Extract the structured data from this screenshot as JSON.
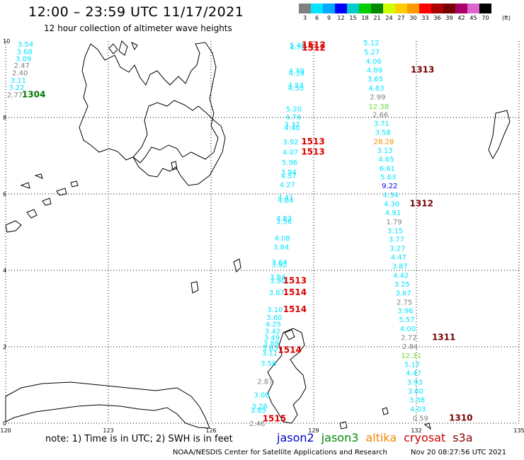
{
  "header": {
    "title": "12:00 – 23:59 UTC 11/17/2021",
    "subtitle": "12 hour collection of altimeter wave heights"
  },
  "colorbar": {
    "unit": "(ft)",
    "colors": [
      "#808080",
      "#00e5ff",
      "#00aaff",
      "#0000ff",
      "#00cccc",
      "#00cc00",
      "#008800",
      "#ccff00",
      "#ffcc00",
      "#ff9900",
      "#ff0000",
      "#aa0000",
      "#770000",
      "#aa0066",
      "#dd66cc",
      "#000000"
    ],
    "labels": [
      "3",
      "6",
      "9",
      "12",
      "15",
      "18",
      "21",
      "24",
      "27",
      "30",
      "33",
      "36",
      "39",
      "42",
      "45",
      "70"
    ]
  },
  "axes": {
    "x_ticks": [
      "120",
      "123",
      "126",
      "129",
      "132",
      "135"
    ],
    "y_ticks": [
      "10",
      "8",
      "6",
      "4",
      "2",
      "0"
    ]
  },
  "observations": [
    {
      "v": "3.54",
      "c": "#00e5ff",
      "lon": 120.58,
      "lat": 9.93
    },
    {
      "v": "3.68",
      "c": "#00e5ff",
      "lon": 120.55,
      "lat": 9.73
    },
    {
      "v": "3.09",
      "c": "#00e5ff",
      "lon": 120.52,
      "lat": 9.55
    },
    {
      "v": "2.47",
      "c": "#808080",
      "lon": 120.47,
      "lat": 9.37
    },
    {
      "v": "2.40",
      "c": "#808080",
      "lon": 120.42,
      "lat": 9.18
    },
    {
      "v": "3.11",
      "c": "#00e5ff",
      "lon": 120.37,
      "lat": 8.98
    },
    {
      "v": "3.22",
      "c": "#00e5ff",
      "lon": 120.32,
      "lat": 8.8
    },
    {
      "v": "2.77",
      "c": "#808080",
      "lon": 120.27,
      "lat": 8.6
    },
    {
      "v": "5.48",
      "c": "#00e5ff",
      "lon": 128.53,
      "lat": 9.9
    },
    {
      "v": "4.78",
      "c": "#00e5ff",
      "lon": 128.53,
      "lat": 9.84
    },
    {
      "v": "4.39",
      "c": "#00e5ff",
      "lon": 128.5,
      "lat": 9.23
    },
    {
      "v": "4.39",
      "c": "#00e5ff",
      "lon": 128.5,
      "lat": 9.17
    },
    {
      "v": "4.53",
      "c": "#00e5ff",
      "lon": 128.48,
      "lat": 8.85
    },
    {
      "v": "4.50",
      "c": "#00e5ff",
      "lon": 128.48,
      "lat": 8.78
    },
    {
      "v": "5.20",
      "c": "#00e5ff",
      "lon": 128.42,
      "lat": 8.23
    },
    {
      "v": "4.74",
      "c": "#00e5ff",
      "lon": 128.4,
      "lat": 8.02
    },
    {
      "v": "3.37",
      "c": "#00e5ff",
      "lon": 128.37,
      "lat": 7.82
    },
    {
      "v": "4.40",
      "c": "#00e5ff",
      "lon": 128.37,
      "lat": 7.74
    },
    {
      "v": "3.92",
      "c": "#00e5ff",
      "lon": 128.33,
      "lat": 7.37
    },
    {
      "v": "4.07",
      "c": "#00e5ff",
      "lon": 128.32,
      "lat": 7.1
    },
    {
      "v": "5.96",
      "c": "#00e5ff",
      "lon": 128.3,
      "lat": 6.83
    },
    {
      "v": "3.94",
      "c": "#00e5ff",
      "lon": 128.27,
      "lat": 6.58
    },
    {
      "v": "4.57",
      "c": "#00e5ff",
      "lon": 128.27,
      "lat": 6.48
    },
    {
      "v": "4.27",
      "c": "#00e5ff",
      "lon": 128.23,
      "lat": 6.25
    },
    {
      "v": "4.41",
      "c": "#00e5ff",
      "lon": 128.18,
      "lat": 5.92
    },
    {
      "v": "4.64",
      "c": "#00e5ff",
      "lon": 128.18,
      "lat": 5.84
    },
    {
      "v": "4.83",
      "c": "#00e5ff",
      "lon": 128.13,
      "lat": 5.37
    },
    {
      "v": "3.56",
      "c": "#00e5ff",
      "lon": 128.13,
      "lat": 5.29
    },
    {
      "v": "4.08",
      "c": "#00e5ff",
      "lon": 128.08,
      "lat": 4.85
    },
    {
      "v": "3.84",
      "c": "#00e5ff",
      "lon": 128.05,
      "lat": 4.62
    },
    {
      "v": "3.64",
      "c": "#00e5ff",
      "lon": 128.0,
      "lat": 4.22
    },
    {
      "v": "3.92",
      "c": "#00e5ff",
      "lon": 128.0,
      "lat": 4.16
    },
    {
      "v": "3.84",
      "c": "#00e5ff",
      "lon": 127.95,
      "lat": 3.83
    },
    {
      "v": "3.90",
      "c": "#00e5ff",
      "lon": 127.95,
      "lat": 3.73
    },
    {
      "v": "3.87",
      "c": "#00e5ff",
      "lon": 127.92,
      "lat": 3.43
    },
    {
      "v": "3.10",
      "c": "#00e5ff",
      "lon": 127.87,
      "lat": 2.98
    },
    {
      "v": "3.60",
      "c": "#00e5ff",
      "lon": 127.85,
      "lat": 2.78
    },
    {
      "v": "4.25",
      "c": "#00e5ff",
      "lon": 127.82,
      "lat": 2.6
    },
    {
      "v": "3.42",
      "c": "#00e5ff",
      "lon": 127.8,
      "lat": 2.42
    },
    {
      "v": "3.49",
      "c": "#00e5ff",
      "lon": 127.78,
      "lat": 2.25
    },
    {
      "v": "3.89",
      "c": "#00e5ff",
      "lon": 127.76,
      "lat": 2.1
    },
    {
      "v": "3.63",
      "c": "#00e5ff",
      "lon": 127.73,
      "lat": 1.97
    },
    {
      "v": "3.11",
      "c": "#00e5ff",
      "lon": 127.72,
      "lat": 1.84
    },
    {
      "v": "3.58",
      "c": "#00e5ff",
      "lon": 127.68,
      "lat": 1.57
    },
    {
      "v": "2.87",
      "c": "#808080",
      "lon": 127.58,
      "lat": 1.1
    },
    {
      "v": "3.08",
      "c": "#00e5ff",
      "lon": 127.48,
      "lat": 0.75
    },
    {
      "v": "3.28",
      "c": "#00e5ff",
      "lon": 127.42,
      "lat": 0.45
    },
    {
      "v": "3.85",
      "c": "#00e5ff",
      "lon": 127.38,
      "lat": 0.35
    },
    {
      "v": "2.46",
      "c": "#808080",
      "lon": 127.35,
      "lat": 0.0
    },
    {
      "v": "5.12",
      "c": "#00e5ff",
      "lon": 130.68,
      "lat": 9.96
    },
    {
      "v": "5.27",
      "c": "#00e5ff",
      "lon": 130.7,
      "lat": 9.72
    },
    {
      "v": "4.06",
      "c": "#00e5ff",
      "lon": 130.75,
      "lat": 9.48
    },
    {
      "v": "4.89",
      "c": "#00e5ff",
      "lon": 130.78,
      "lat": 9.25
    },
    {
      "v": "3.65",
      "c": "#00e5ff",
      "lon": 130.8,
      "lat": 9.02
    },
    {
      "v": "4.83",
      "c": "#00e5ff",
      "lon": 130.83,
      "lat": 8.78
    },
    {
      "v": "2.99",
      "c": "#808080",
      "lon": 130.87,
      "lat": 8.55
    },
    {
      "v": "12.38",
      "c": "#66dd33",
      "lon": 130.9,
      "lat": 8.3
    },
    {
      "v": "2.66",
      "c": "#808080",
      "lon": 130.95,
      "lat": 8.08
    },
    {
      "v": "3.71",
      "c": "#00e5ff",
      "lon": 130.98,
      "lat": 7.85
    },
    {
      "v": "3.58",
      "c": "#00e5ff",
      "lon": 131.02,
      "lat": 7.62
    },
    {
      "v": "28.28",
      "c": "#ee8800",
      "lon": 131.05,
      "lat": 7.38
    },
    {
      "v": "3.13",
      "c": "#00e5ff",
      "lon": 131.08,
      "lat": 7.15
    },
    {
      "v": "4.65",
      "c": "#00e5ff",
      "lon": 131.12,
      "lat": 6.92
    },
    {
      "v": "6.61",
      "c": "#00e5ff",
      "lon": 131.15,
      "lat": 6.68
    },
    {
      "v": "5.63",
      "c": "#00e5ff",
      "lon": 131.18,
      "lat": 6.45
    },
    {
      "v": "9.22",
      "c": "#0000ff",
      "lon": 131.22,
      "lat": 6.22
    },
    {
      "v": "4.34",
      "c": "#00e5ff",
      "lon": 131.25,
      "lat": 5.98
    },
    {
      "v": "4.30",
      "c": "#00e5ff",
      "lon": 131.28,
      "lat": 5.75
    },
    {
      "v": "4.91",
      "c": "#00e5ff",
      "lon": 131.32,
      "lat": 5.52
    },
    {
      "v": "1.79",
      "c": "#808080",
      "lon": 131.35,
      "lat": 5.28
    },
    {
      "v": "3.15",
      "c": "#00e5ff",
      "lon": 131.38,
      "lat": 5.05
    },
    {
      "v": "3.77",
      "c": "#00e5ff",
      "lon": 131.42,
      "lat": 4.82
    },
    {
      "v": "3.27",
      "c": "#00e5ff",
      "lon": 131.45,
      "lat": 4.58
    },
    {
      "v": "4.47",
      "c": "#00e5ff",
      "lon": 131.48,
      "lat": 4.35
    },
    {
      "v": "3.87",
      "c": "#00e5ff",
      "lon": 131.52,
      "lat": 4.12
    },
    {
      "v": "4.42",
      "c": "#00e5ff",
      "lon": 131.55,
      "lat": 3.88
    },
    {
      "v": "3.25",
      "c": "#00e5ff",
      "lon": 131.58,
      "lat": 3.65
    },
    {
      "v": "3.67",
      "c": "#00e5ff",
      "lon": 131.62,
      "lat": 3.42
    },
    {
      "v": "2.75",
      "c": "#808080",
      "lon": 131.65,
      "lat": 3.18
    },
    {
      "v": "3.96",
      "c": "#00e5ff",
      "lon": 131.68,
      "lat": 2.95
    },
    {
      "v": "5.57",
      "c": "#00e5ff",
      "lon": 131.72,
      "lat": 2.72
    },
    {
      "v": "4.00",
      "c": "#00e5ff",
      "lon": 131.75,
      "lat": 2.48
    },
    {
      "v": "2.72",
      "c": "#808080",
      "lon": 131.78,
      "lat": 2.25
    },
    {
      "v": "2.84",
      "c": "#808080",
      "lon": 131.82,
      "lat": 2.02
    },
    {
      "v": "12.31",
      "c": "#66dd33",
      "lon": 131.85,
      "lat": 1.78
    },
    {
      "v": "5.17",
      "c": "#00e5ff",
      "lon": 131.88,
      "lat": 1.55
    },
    {
      "v": "4.47",
      "c": "#00e5ff",
      "lon": 131.92,
      "lat": 1.32
    },
    {
      "v": "3.93",
      "c": "#00e5ff",
      "lon": 131.95,
      "lat": 1.08
    },
    {
      "v": "3.60",
      "c": "#00e5ff",
      "lon": 131.98,
      "lat": 0.85
    },
    {
      "v": "3.38",
      "c": "#00e5ff",
      "lon": 132.02,
      "lat": 0.62
    },
    {
      "v": "4.03",
      "c": "#00e5ff",
      "lon": 132.05,
      "lat": 0.38
    },
    {
      "v": "0.59",
      "c": "#808080",
      "lon": 132.12,
      "lat": 0.14
    }
  ],
  "pass_ids": [
    {
      "id": "1304",
      "c": "#007700",
      "lon": 120.82,
      "lat": 8.6
    },
    {
      "id": "1512",
      "c": "#dd0000",
      "lon": 129.0,
      "lat": 9.9
    },
    {
      "id": "1512",
      "c": "#dd0000",
      "lon": 129.0,
      "lat": 9.82
    },
    {
      "id": "1313",
      "c": "#770000",
      "lon": 132.18,
      "lat": 9.25
    },
    {
      "id": "1513",
      "c": "#dd0000",
      "lon": 128.98,
      "lat": 7.37
    },
    {
      "id": "1513",
      "c": "#dd0000",
      "lon": 128.98,
      "lat": 7.1
    },
    {
      "id": "1312",
      "c": "#770000",
      "lon": 132.15,
      "lat": 5.75
    },
    {
      "id": "1513",
      "c": "#dd0000",
      "lon": 128.45,
      "lat": 3.73
    },
    {
      "id": "1514",
      "c": "#dd0000",
      "lon": 128.45,
      "lat": 3.43
    },
    {
      "id": "1514",
      "c": "#dd0000",
      "lon": 128.45,
      "lat": 2.98
    },
    {
      "id": "1514",
      "c": "#dd0000",
      "lon": 128.3,
      "lat": 1.92
    },
    {
      "id": "1311",
      "c": "#770000",
      "lon": 132.8,
      "lat": 2.25
    },
    {
      "id": "1515",
      "c": "#dd0000",
      "lon": 127.85,
      "lat": 0.12
    },
    {
      "id": "1310",
      "c": "#770000",
      "lon": 133.3,
      "lat": 0.14
    }
  ],
  "footer": {
    "note": "note: 1) Time is in UTC; 2) SWH is in feet",
    "legend": [
      {
        "label": "jason2",
        "color": "#0000cc"
      },
      {
        "label": "jason3",
        "color": "#008800"
      },
      {
        "label": "altika",
        "color": "#ee8800"
      },
      {
        "label": "cryosat",
        "color": "#cc0000"
      },
      {
        "label": "s3a",
        "color": "#880000"
      }
    ],
    "credit": "NOAA/NESDIS Center for Satellite Applications and Research",
    "timestamp": "Nov 20 08:27:56 UTC 2021"
  }
}
